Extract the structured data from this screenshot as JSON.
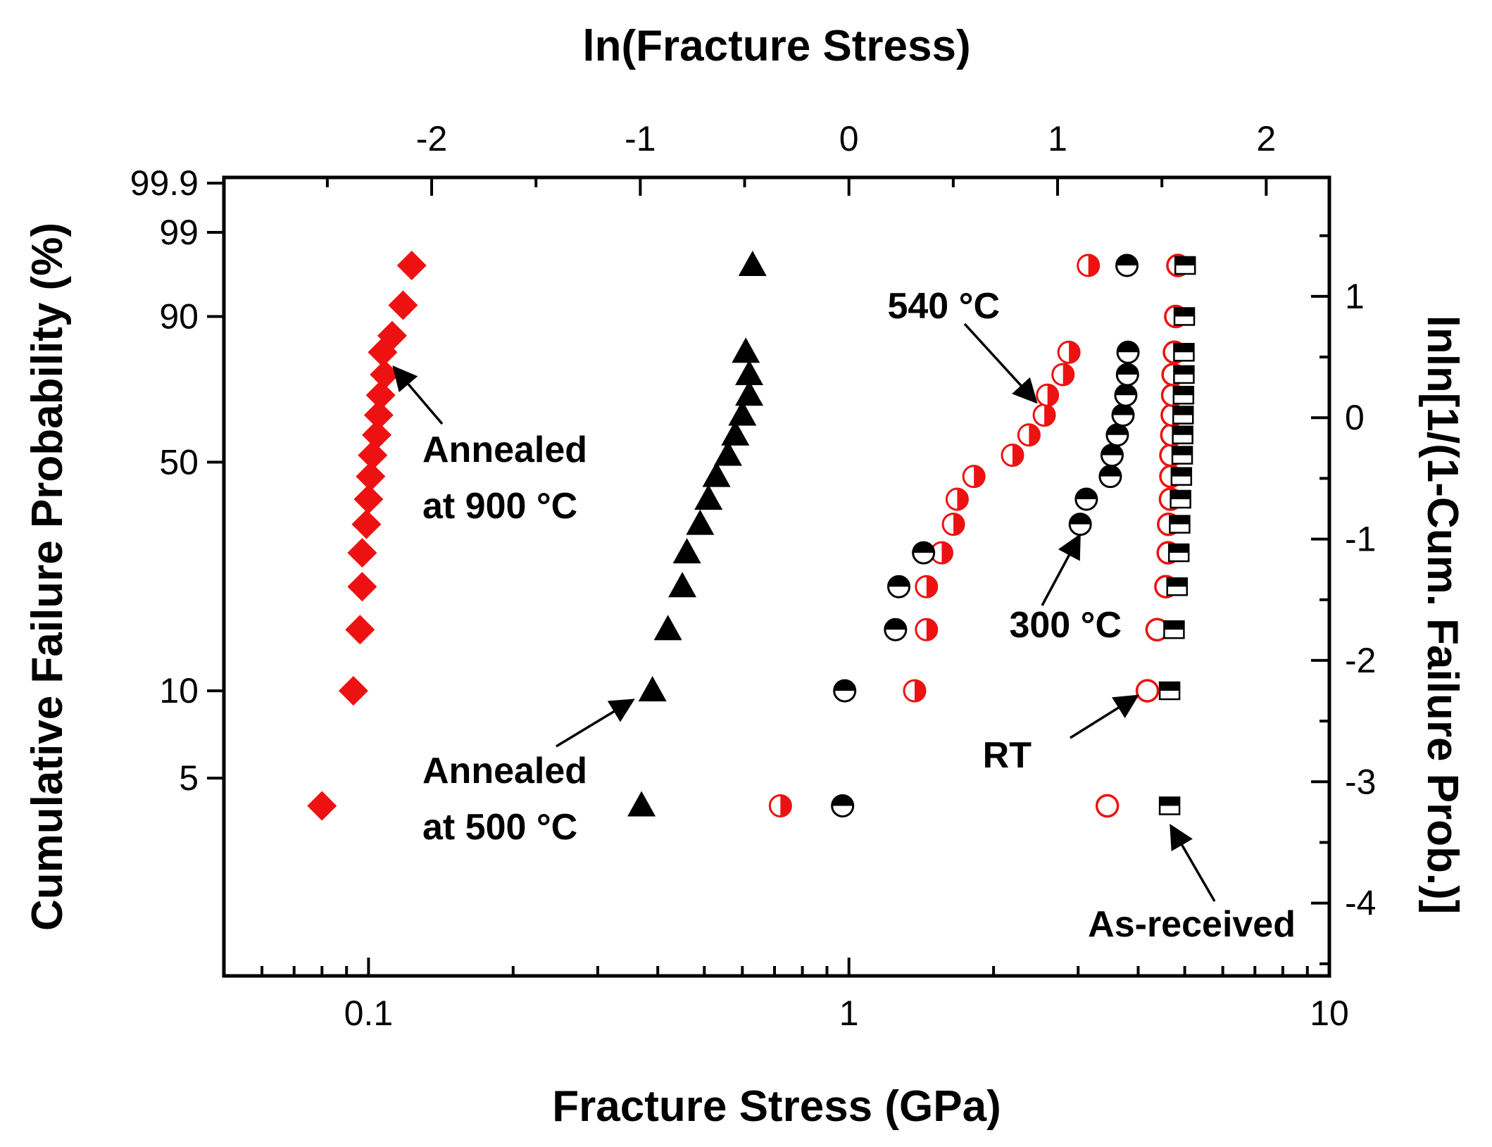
{
  "chart_data": {
    "type": "scatter",
    "title": "",
    "xlabel": "Fracture Stress (GPa)",
    "x_scale": "log",
    "xlim": [
      0.05,
      10
    ],
    "x_ticks": [
      0.1,
      1,
      10
    ],
    "x_tick_labels": [
      "0.1",
      "1",
      "10"
    ],
    "x2label": "ln(Fracture Stress)",
    "x2_ticks": [
      -2,
      -1,
      0,
      1,
      2
    ],
    "x2_tick_labels": [
      "-2",
      "-1",
      "0",
      "1",
      "2"
    ],
    "ylabel": "Cumulative Failure Probability (%)",
    "y_scale": "weibull",
    "y_ticks": [
      5,
      10,
      50,
      90,
      99,
      99.9
    ],
    "y_tick_labels": [
      "5",
      "10",
      "50",
      "90",
      "99",
      "99.9"
    ],
    "y2label": "lnln[1/(1-Cum. Failure Prob.)]",
    "ylim_lnln": [
      -4.6,
      1.98
    ],
    "y2_ticks": [
      -4,
      -3,
      -2,
      -1,
      0,
      1
    ],
    "y2_tick_labels": [
      "-4",
      "-3",
      "-2",
      "-1",
      "0",
      "1"
    ],
    "grid": false,
    "series": [
      {
        "name": "Annealed at 900 °C",
        "marker": "diamond",
        "color": "#ee1111",
        "x": [
          0.08,
          0.093,
          0.096,
          0.097,
          0.097,
          0.099,
          0.1,
          0.101,
          0.102,
          0.104,
          0.105,
          0.106,
          0.108,
          0.107,
          0.112,
          0.118,
          0.123
        ],
        "p": [
          4,
          10,
          16,
          22,
          28,
          34,
          40,
          46,
          52,
          58,
          64,
          70,
          76,
          82,
          86,
          92,
          97
        ]
      },
      {
        "name": "Annealed at 500 °C",
        "marker": "triangle",
        "color": "#000000",
        "x": [
          0.37,
          0.39,
          0.42,
          0.45,
          0.46,
          0.49,
          0.51,
          0.53,
          0.56,
          0.58,
          0.6,
          0.62,
          0.62,
          0.61,
          0.63
        ],
        "p": [
          4,
          10,
          16,
          22,
          28,
          34,
          40,
          46,
          52,
          58,
          64,
          70,
          76,
          82,
          97
        ]
      },
      {
        "name": "540 °C",
        "marker": "circle-half-right",
        "color": "#ee1111",
        "x": [
          0.72,
          1.37,
          1.45,
          1.45,
          1.56,
          1.65,
          1.68,
          1.82,
          2.19,
          2.37,
          2.55,
          2.59,
          2.79,
          2.87,
          3.15
        ],
        "p": [
          4,
          10,
          16,
          22,
          28,
          34,
          40,
          46,
          52,
          58,
          64,
          70,
          76,
          82,
          97
        ]
      },
      {
        "name": "300 °C",
        "marker": "circle-half-top",
        "color": "#000000",
        "x": [
          0.97,
          0.98,
          1.25,
          1.27,
          1.43,
          3.03,
          3.12,
          3.5,
          3.53,
          3.62,
          3.72,
          3.77,
          3.8,
          3.81,
          3.79
        ],
        "p": [
          4,
          10,
          16,
          22,
          28,
          34,
          40,
          46,
          52,
          58,
          64,
          70,
          76,
          82,
          97
        ]
      },
      {
        "name": "RT",
        "marker": "circle-open",
        "color": "#ee1111",
        "x": [
          3.45,
          4.18,
          4.38,
          4.57,
          4.62,
          4.63,
          4.67,
          4.68,
          4.68,
          4.7,
          4.71,
          4.72,
          4.73,
          4.76,
          4.79,
          4.84
        ],
        "p": [
          4,
          10,
          16,
          22,
          28,
          34,
          40,
          46,
          52,
          58,
          64,
          70,
          76,
          82,
          90,
          97
        ]
      },
      {
        "name": "As-received",
        "marker": "square-half-top",
        "color": "#000000",
        "x": [
          4.65,
          4.65,
          4.75,
          4.82,
          4.86,
          4.88,
          4.9,
          4.92,
          4.94,
          4.95,
          4.96,
          4.97,
          4.98,
          4.98,
          4.99,
          5.01
        ],
        "p": [
          4,
          10,
          16,
          22,
          28,
          34,
          40,
          46,
          52,
          58,
          64,
          70,
          76,
          82,
          90,
          97
        ]
      }
    ],
    "annotations": [
      {
        "lines": [
          "Annealed",
          "at 900 °C"
        ],
        "target_x": 0.113,
        "target_p": 78
      },
      {
        "lines": [
          "Annealed",
          "at 500 °C"
        ],
        "target_x": 0.355,
        "target_p": 9.3
      },
      {
        "lines": [
          "540 °C"
        ],
        "target_x": 2.45,
        "target_p": 68
      },
      {
        "lines": [
          "300 °C"
        ],
        "target_x": 3.02,
        "target_p": 31.5
      },
      {
        "lines": [
          "RT"
        ],
        "target_x": 3.98,
        "target_p": 9.6
      },
      {
        "lines": [
          "As-received"
        ],
        "target_x": 4.68,
        "target_p": 3.4
      }
    ]
  }
}
